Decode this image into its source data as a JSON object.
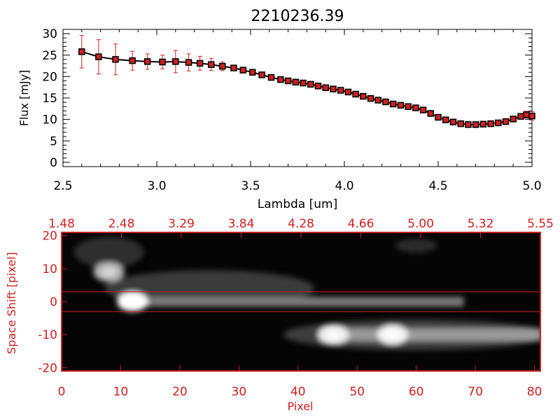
{
  "colors": {
    "axis": "#000000",
    "accent": "#cc2222",
    "marker": "#cc2222",
    "line": "#000000"
  },
  "chart_data": [
    {
      "type": "line",
      "title": "2210236.39",
      "xlabel": "Lambda [um]",
      "ylabel": "Flux [mJy]",
      "xlim": [
        2.5,
        5.0
      ],
      "ylim": [
        -1,
        31
      ],
      "xticks": [
        "2.5",
        "3.0",
        "3.5",
        "4.0",
        "4.5",
        "5.0"
      ],
      "yticks": [
        "0",
        "5",
        "10",
        "15",
        "20",
        "25",
        "30"
      ],
      "xtick_values": [
        2.5,
        3.0,
        3.5,
        4.0,
        4.5,
        5.0
      ],
      "ytick_values": [
        0,
        5,
        10,
        15,
        20,
        25,
        30
      ],
      "grid": false,
      "series": [
        {
          "x": [
            2.6,
            2.69,
            2.78,
            2.87,
            2.95,
            3.03,
            3.1,
            3.17,
            3.23,
            3.29,
            3.35,
            3.41,
            3.46,
            3.51,
            3.56,
            3.61,
            3.66,
            3.7,
            3.74,
            3.78,
            3.82,
            3.86,
            3.9,
            3.94,
            3.98,
            4.02,
            4.06,
            4.1,
            4.14,
            4.18,
            4.22,
            4.26,
            4.3,
            4.34,
            4.38,
            4.42,
            4.46,
            4.5,
            4.54,
            4.58,
            4.62,
            4.66,
            4.7,
            4.74,
            4.78,
            4.82,
            4.86,
            4.9,
            4.94,
            4.97,
            5.0
          ],
          "y": [
            25.8,
            24.6,
            24.0,
            23.7,
            23.5,
            23.4,
            23.5,
            23.3,
            23.1,
            22.8,
            22.4,
            22.0,
            21.5,
            21.0,
            20.4,
            19.8,
            19.3,
            19.0,
            18.7,
            18.5,
            18.2,
            17.8,
            17.4,
            17.1,
            16.8,
            16.4,
            15.9,
            15.4,
            14.9,
            14.5,
            14.1,
            13.6,
            13.3,
            13.0,
            12.7,
            12.2,
            11.4,
            10.5,
            9.9,
            9.4,
            9.0,
            8.8,
            8.8,
            8.9,
            9.0,
            9.2,
            9.5,
            10.1,
            10.7,
            11.1,
            10.8
          ],
          "err": [
            3.8,
            4.0,
            3.6,
            2.2,
            1.8,
            1.6,
            2.6,
            2.0,
            1.6,
            1.4,
            1.0,
            0.6,
            0.4,
            0.4,
            0.3,
            0.3,
            0.3,
            0.3,
            0.3,
            0.3,
            0.3,
            0.3,
            0.3,
            0.3,
            0.3,
            0.3,
            0.3,
            0.3,
            0.3,
            0.3,
            0.3,
            0.3,
            0.3,
            0.3,
            0.3,
            0.3,
            0.3,
            0.3,
            0.3,
            0.3,
            0.3,
            0.3,
            0.3,
            0.3,
            0.3,
            0.3,
            0.4,
            0.5,
            0.6,
            0.8,
            1.0
          ]
        }
      ]
    },
    {
      "type": "heatmap",
      "title": "",
      "xlabel": "Pixel",
      "ylabel": "Space Shift [pixel]",
      "xlim": [
        0,
        81
      ],
      "ylim": [
        -21,
        21
      ],
      "xticks": [
        "0",
        "10",
        "20",
        "30",
        "40",
        "50",
        "60",
        "70",
        "80"
      ],
      "xtick_values": [
        0,
        10,
        20,
        30,
        40,
        50,
        60,
        70,
        80
      ],
      "yticks": [
        "20",
        "10",
        "0",
        "-10",
        "-20"
      ],
      "ytick_values": [
        20,
        10,
        0,
        -10,
        -20
      ],
      "top_tick_labels": [
        "1.48",
        "2.48",
        "3.29",
        "3.84",
        "4.28",
        "4.66",
        "5.00",
        "5.32",
        "5.55"
      ],
      "extraction_window": [
        -3,
        3
      ],
      "sources": [
        {
          "x": 12,
          "y": 0,
          "peak": 1.0
        },
        {
          "x": 8,
          "y": 9,
          "peak": 0.45
        },
        {
          "x": 46,
          "y": -10,
          "peak": 0.85
        },
        {
          "x": 56,
          "y": -10,
          "peak": 0.9
        }
      ],
      "trace": {
        "x_start": 10,
        "x_end": 68,
        "y": 0
      },
      "trace2": {
        "x_start": 44,
        "x_end": 81,
        "y": -10
      }
    }
  ]
}
